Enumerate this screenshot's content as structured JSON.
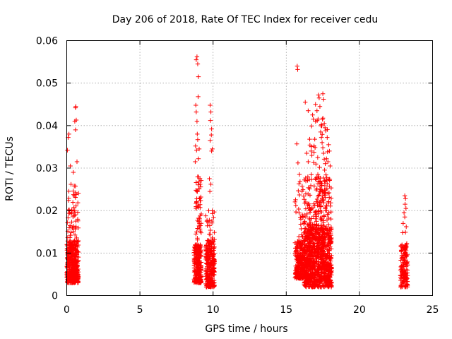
{
  "chart_data": {
    "type": "scatter",
    "title": "Day 206 of 2018, Rate Of TEC Index for receiver cedu",
    "xlabel": "GPS time / hours",
    "ylabel": "ROTI / TECUs",
    "xlim": [
      0,
      25
    ],
    "ylim": [
      0,
      0.06
    ],
    "xticks": [
      "0",
      "5",
      "10",
      "15",
      "20",
      "25"
    ],
    "yticks": [
      "0",
      "0.01",
      "0.02",
      "0.03",
      "0.04",
      "0.05",
      "0.06"
    ],
    "xtick_values": [
      0,
      5,
      10,
      15,
      20,
      25
    ],
    "ytick_values": [
      0,
      0.01,
      0.02,
      0.03,
      0.04,
      0.05,
      0.06
    ],
    "grid": true,
    "marker": "+",
    "color": "#ff0000",
    "series": [
      {
        "name": "ROTI",
        "clusters": [
          {
            "x": [
              0.0,
              0.8
            ],
            "y": [
              0.003,
              0.013
            ],
            "n": 320
          },
          {
            "x": [
              0.05,
              0.8
            ],
            "y": [
              0.003,
              0.026
            ],
            "n": 110
          },
          {
            "x": [
              0.1,
              0.7
            ],
            "y": [
              0.004,
              0.031
            ],
            "n": 25
          },
          {
            "x": [
              8.7,
              9.2
            ],
            "y": [
              0.003,
              0.012
            ],
            "n": 200
          },
          {
            "x": [
              8.8,
              9.2
            ],
            "y": [
              0.003,
              0.028
            ],
            "n": 90
          },
          {
            "x": [
              9.5,
              10.1
            ],
            "y": [
              0.002,
              0.013
            ],
            "n": 220
          },
          {
            "x": [
              9.5,
              10.1
            ],
            "y": [
              0.002,
              0.02
            ],
            "n": 60
          },
          {
            "x": [
              15.6,
              16.3
            ],
            "y": [
              0.004,
              0.013
            ],
            "n": 200
          },
          {
            "x": [
              15.6,
              16.3
            ],
            "y": [
              0.004,
              0.027
            ],
            "n": 70
          },
          {
            "x": [
              16.2,
              18.1
            ],
            "y": [
              0.002,
              0.016
            ],
            "n": 650
          },
          {
            "x": [
              16.2,
              18.1
            ],
            "y": [
              0.003,
              0.028
            ],
            "n": 350
          },
          {
            "x": [
              16.6,
              17.9
            ],
            "y": [
              0.01,
              0.042
            ],
            "n": 90
          },
          {
            "x": [
              22.8,
              23.3
            ],
            "y": [
              0.002,
              0.012
            ],
            "n": 120
          },
          {
            "x": [
              22.9,
              23.3
            ],
            "y": [
              0.004,
              0.018
            ],
            "n": 25
          }
        ],
        "points": [
          [
            0.05,
            0.0342
          ],
          [
            0.1,
            0.0372
          ],
          [
            0.15,
            0.038
          ],
          [
            0.6,
            0.0442
          ],
          [
            0.62,
            0.0445
          ],
          [
            0.55,
            0.041
          ],
          [
            0.65,
            0.0413
          ],
          [
            0.6,
            0.039
          ],
          [
            0.25,
            0.0305
          ],
          [
            0.45,
            0.029
          ],
          [
            0.7,
            0.0315
          ],
          [
            8.85,
            0.0555
          ],
          [
            8.9,
            0.0562
          ],
          [
            8.95,
            0.0545
          ],
          [
            9.0,
            0.0515
          ],
          [
            8.98,
            0.0468
          ],
          [
            8.82,
            0.0448
          ],
          [
            8.85,
            0.0432
          ],
          [
            8.9,
            0.041
          ],
          [
            8.92,
            0.038
          ],
          [
            8.95,
            0.0367
          ],
          [
            8.8,
            0.0352
          ],
          [
            8.87,
            0.0342
          ],
          [
            9.05,
            0.0345
          ],
          [
            9.0,
            0.0322
          ],
          [
            8.78,
            0.0315
          ],
          [
            9.8,
            0.0448
          ],
          [
            9.85,
            0.0432
          ],
          [
            9.82,
            0.0412
          ],
          [
            9.9,
            0.0392
          ],
          [
            9.88,
            0.0378
          ],
          [
            9.8,
            0.0365
          ],
          [
            9.95,
            0.0345
          ],
          [
            9.9,
            0.034
          ],
          [
            9.75,
            0.0275
          ],
          [
            9.85,
            0.0262
          ],
          [
            9.78,
            0.0245
          ],
          [
            15.75,
            0.054
          ],
          [
            15.78,
            0.0532
          ],
          [
            15.72,
            0.0357
          ],
          [
            15.8,
            0.0312
          ],
          [
            15.9,
            0.0285
          ],
          [
            16.3,
            0.0455
          ],
          [
            16.5,
            0.0435
          ],
          [
            16.8,
            0.0425
          ],
          [
            16.85,
            0.0415
          ],
          [
            16.6,
            0.0368
          ],
          [
            16.9,
            0.0352
          ],
          [
            16.4,
            0.0335
          ],
          [
            16.5,
            0.0315
          ],
          [
            17.0,
            0.041
          ],
          [
            17.2,
            0.0472
          ],
          [
            17.25,
            0.0465
          ],
          [
            17.3,
            0.0445
          ],
          [
            17.5,
            0.0475
          ],
          [
            17.55,
            0.0462
          ],
          [
            17.0,
            0.045
          ],
          [
            17.1,
            0.0435
          ],
          [
            17.4,
            0.0402
          ],
          [
            17.6,
            0.0405
          ],
          [
            17.65,
            0.0395
          ],
          [
            17.7,
            0.0388
          ],
          [
            17.35,
            0.0385
          ],
          [
            17.8,
            0.0372
          ],
          [
            17.9,
            0.0355
          ],
          [
            17.95,
            0.034
          ],
          [
            17.45,
            0.036
          ],
          [
            17.5,
            0.0348
          ],
          [
            17.55,
            0.0335
          ],
          [
            17.75,
            0.0322
          ],
          [
            17.85,
            0.0315
          ],
          [
            18.0,
            0.0305
          ],
          [
            16.7,
            0.034
          ],
          [
            16.75,
            0.033
          ],
          [
            17.15,
            0.0325
          ],
          [
            23.1,
            0.0235
          ],
          [
            23.15,
            0.0228
          ],
          [
            23.12,
            0.0215
          ],
          [
            23.18,
            0.0205
          ],
          [
            23.05,
            0.0195
          ],
          [
            23.1,
            0.0185
          ],
          [
            22.95,
            0.0148
          ],
          [
            23.2,
            0.0162
          ]
        ]
      }
    ]
  }
}
